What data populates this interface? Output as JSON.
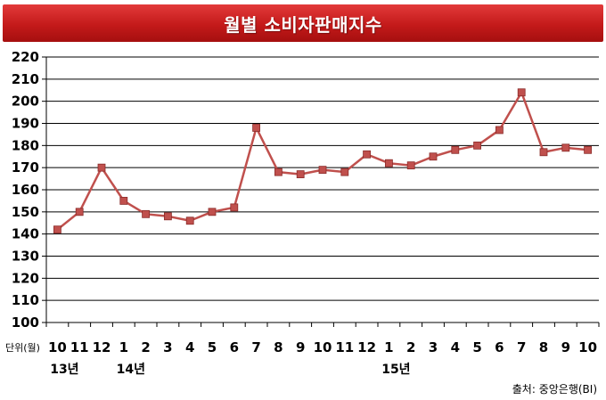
{
  "title": "월별 소비자판매지수",
  "unit_label": "단위(월)",
  "source": "출처: 중앙은행(BI)",
  "colors": {
    "title_bg": "#c41a1a",
    "line": "#c0504d",
    "marker": "#c0504d",
    "grid": "#000000"
  },
  "chart_data": {
    "type": "line",
    "title": "월별 소비자판매지수",
    "xlabel": "",
    "ylabel": "",
    "ylim": [
      100,
      220
    ],
    "ytick_step": 10,
    "grid": true,
    "categories": [
      "10",
      "11",
      "12",
      "1",
      "2",
      "3",
      "4",
      "5",
      "6",
      "7",
      "8",
      "9",
      "10",
      "11",
      "12",
      "1",
      "2",
      "3",
      "4",
      "5",
      "6",
      "7",
      "8",
      "9",
      "10"
    ],
    "year_labels": [
      {
        "index": 0,
        "label": "13년"
      },
      {
        "index": 3,
        "label": "14년"
      },
      {
        "index": 15,
        "label": "15년"
      }
    ],
    "series": [
      {
        "values": [
          142,
          150,
          170,
          155,
          149,
          148,
          146,
          150,
          152,
          188,
          168,
          167,
          169,
          168,
          176,
          172,
          171,
          175,
          178,
          180,
          187,
          204,
          177,
          179,
          178
        ]
      }
    ]
  }
}
